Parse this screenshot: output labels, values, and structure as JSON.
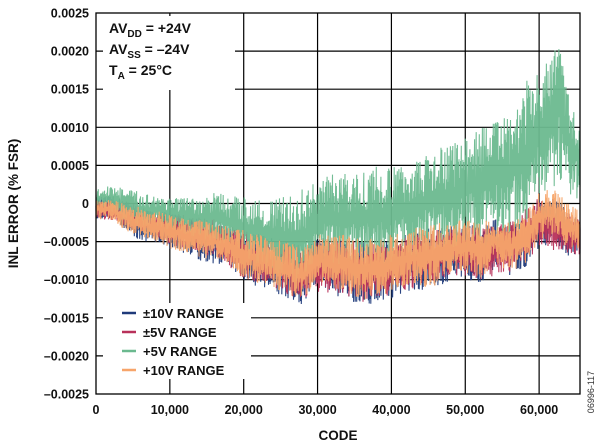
{
  "chart_data": {
    "type": "line",
    "title": "",
    "xlabel": "CODE",
    "ylabel": "INL ERROR (% FSR)",
    "xlim": [
      0,
      65535
    ],
    "ylim": [
      -0.0025,
      0.0025
    ],
    "x_ticks": [
      0,
      10000,
      20000,
      30000,
      40000,
      50000,
      60000
    ],
    "x_tick_labels": [
      "0",
      "10,000",
      "20,000",
      "30,000",
      "40,000",
      "50,000",
      "60,000"
    ],
    "y_ticks": [
      0.0025,
      0.002,
      0.0015,
      0.001,
      0.0005,
      0,
      -0.0005,
      -0.001,
      -0.0015,
      -0.002,
      -0.0025
    ],
    "y_tick_labels": [
      "0.0025",
      "0.0020",
      "0.0015",
      "0.0010",
      "0.0005",
      "0",
      "–0.0005",
      "–0.0010",
      "–0.0015",
      "–0.0020",
      "–0.0025"
    ],
    "grid": true,
    "legend_position": "bottom-left",
    "annotations": [
      {
        "base": "AV",
        "sub": "DD",
        "rest": " = +24V"
      },
      {
        "base": "AV",
        "sub": "SS",
        "rest": " = –24V"
      },
      {
        "base": "T",
        "sub": "A",
        "rest": " = 25°C"
      }
    ],
    "figure_id": "06996-117",
    "series": [
      {
        "name": "±10V RANGE",
        "color": "#1f3a7a",
        "x": [
          0,
          2000,
          4000,
          6000,
          8000,
          10000,
          12000,
          14000,
          16000,
          18000,
          20000,
          22000,
          24000,
          26000,
          28000,
          30000,
          32000,
          34000,
          36000,
          38000,
          40000,
          42000,
          44000,
          46000,
          48000,
          50000,
          52000,
          54000,
          56000,
          58000,
          60000,
          62000,
          64000,
          65535
        ],
        "upper": [
          8e-05,
          0.0001,
          5e-05,
          -5e-05,
          -0.0001,
          -0.00012,
          -0.00015,
          -0.0002,
          -0.00025,
          -0.0003,
          -0.00035,
          -0.0004,
          -0.00045,
          -0.0005,
          -0.0006,
          -0.00045,
          -0.00045,
          -0.00045,
          -0.0005,
          -0.0005,
          -0.00045,
          -0.0004,
          -0.00035,
          -0.0003,
          -0.0003,
          -0.00025,
          -0.0003,
          -0.0002,
          -0.0003,
          -0.0002,
          0.0001,
          0.0001,
          -0.0001,
          -0.0002
        ],
        "lower": [
          -0.0002,
          -0.0002,
          -0.00035,
          -0.0005,
          -0.0005,
          -0.0006,
          -0.00065,
          -0.00075,
          -0.0008,
          -0.0008,
          -0.00105,
          -0.0011,
          -0.00115,
          -0.0013,
          -0.0014,
          -0.00105,
          -0.0012,
          -0.00125,
          -0.00135,
          -0.0013,
          -0.00125,
          -0.00115,
          -0.00115,
          -0.00115,
          -0.001,
          -0.001,
          -0.00105,
          -0.00085,
          -0.00095,
          -0.00085,
          -0.0006,
          -0.0005,
          -0.0007,
          -0.0007
        ]
      },
      {
        "name": "±5V RANGE",
        "color": "#b8315a",
        "x": [
          0,
          4000,
          8000,
          12000,
          16000,
          20000,
          24000,
          28000,
          32000,
          36000,
          40000,
          44000,
          48000,
          52000,
          56000,
          60000,
          65535
        ],
        "upper": [
          5e-05,
          3e-05,
          -0.0001,
          -0.00015,
          -0.0002,
          -0.00035,
          -0.00045,
          -0.00055,
          -0.00045,
          -0.0005,
          -0.00045,
          -0.00035,
          -0.0003,
          -0.0003,
          -0.00025,
          0.0001,
          -0.0002
        ],
        "lower": [
          -0.00018,
          -0.0003,
          -0.00045,
          -0.0006,
          -0.0007,
          -0.001,
          -0.0011,
          -0.0013,
          -0.00115,
          -0.0013,
          -0.0012,
          -0.0011,
          -0.00095,
          -0.001,
          -0.0009,
          -0.0006,
          -0.0007
        ]
      },
      {
        "name": "+5V RANGE",
        "color": "#6bb98f",
        "x": [
          0,
          2000,
          4000,
          6000,
          8000,
          10000,
          12000,
          14000,
          16000,
          18000,
          20000,
          22000,
          24000,
          26000,
          28000,
          30000,
          32000,
          34000,
          36000,
          38000,
          40000,
          42000,
          44000,
          46000,
          48000,
          50000,
          52000,
          54000,
          56000,
          58000,
          60000,
          62000,
          63000,
          64000,
          65535
        ],
        "upper": [
          0.00018,
          0.00025,
          0.0002,
          0.00015,
          0.00012,
          0.0001,
          8e-05,
          5e-05,
          0.00015,
          0.0001,
          0.0001,
          0.0001,
          5e-05,
          0.0001,
          0.0002,
          0.0003,
          0.0004,
          0.0004,
          0.00045,
          0.0005,
          0.00045,
          0.0006,
          0.0006,
          0.0007,
          0.0008,
          0.0009,
          0.001,
          0.0012,
          0.0011,
          0.0016,
          0.0017,
          0.002,
          0.0023,
          0.0014,
          0.0012
        ],
        "lower": [
          -5e-05,
          -0.0001,
          -0.00025,
          -0.0003,
          -0.0003,
          -0.00035,
          -0.0004,
          -0.00045,
          -0.0005,
          -0.0006,
          -0.0007,
          -0.0008,
          -0.0009,
          -0.001,
          -0.00115,
          -0.0007,
          -0.0008,
          -0.0008,
          -0.0008,
          -0.0008,
          -0.0008,
          -0.0007,
          -0.0007,
          -0.0006,
          -0.0006,
          -0.0005,
          -0.0005,
          -0.0004,
          -0.0004,
          -0.0003,
          0.0,
          0.0002,
          0.0003,
          0.0001,
          0.0
        ]
      },
      {
        "name": "+10V RANGE",
        "color": "#f7a56a",
        "x": [
          0,
          2000,
          4000,
          6000,
          8000,
          10000,
          12000,
          14000,
          16000,
          18000,
          20000,
          22000,
          24000,
          26000,
          28000,
          30000,
          32000,
          34000,
          36000,
          38000,
          40000,
          42000,
          44000,
          46000,
          48000,
          50000,
          52000,
          54000,
          56000,
          58000,
          60000,
          62000,
          64000,
          65535
        ],
        "upper": [
          5e-05,
          5e-05,
          0.0,
          -5e-05,
          -0.0001,
          -0.00012,
          -0.00015,
          -0.0002,
          -0.00025,
          -0.0003,
          -0.00035,
          -0.0004,
          -0.00045,
          -0.0005,
          -0.0006,
          -0.0004,
          -0.0004,
          -0.0004,
          -0.00045,
          -0.00045,
          -0.0004,
          -0.00035,
          -0.0003,
          -0.00025,
          -0.00025,
          -0.0002,
          -0.00025,
          -0.00015,
          -0.00025,
          -0.00015,
          0.00015,
          0.0002,
          0.0,
          -0.0001
        ],
        "lower": [
          -0.0002,
          -0.00022,
          -0.00035,
          -0.00045,
          -0.0005,
          -0.0006,
          -0.00065,
          -0.0007,
          -0.00075,
          -0.0008,
          -0.001,
          -0.00105,
          -0.0011,
          -0.0012,
          -0.0013,
          -0.001,
          -0.0011,
          -0.0012,
          -0.0013,
          -0.0012,
          -0.0012,
          -0.0011,
          -0.0011,
          -0.0011,
          -0.00095,
          -0.0009,
          -0.001,
          -0.0008,
          -0.0009,
          -0.0008,
          -0.0005,
          -0.0004,
          -0.0006,
          -0.0006
        ]
      }
    ]
  }
}
